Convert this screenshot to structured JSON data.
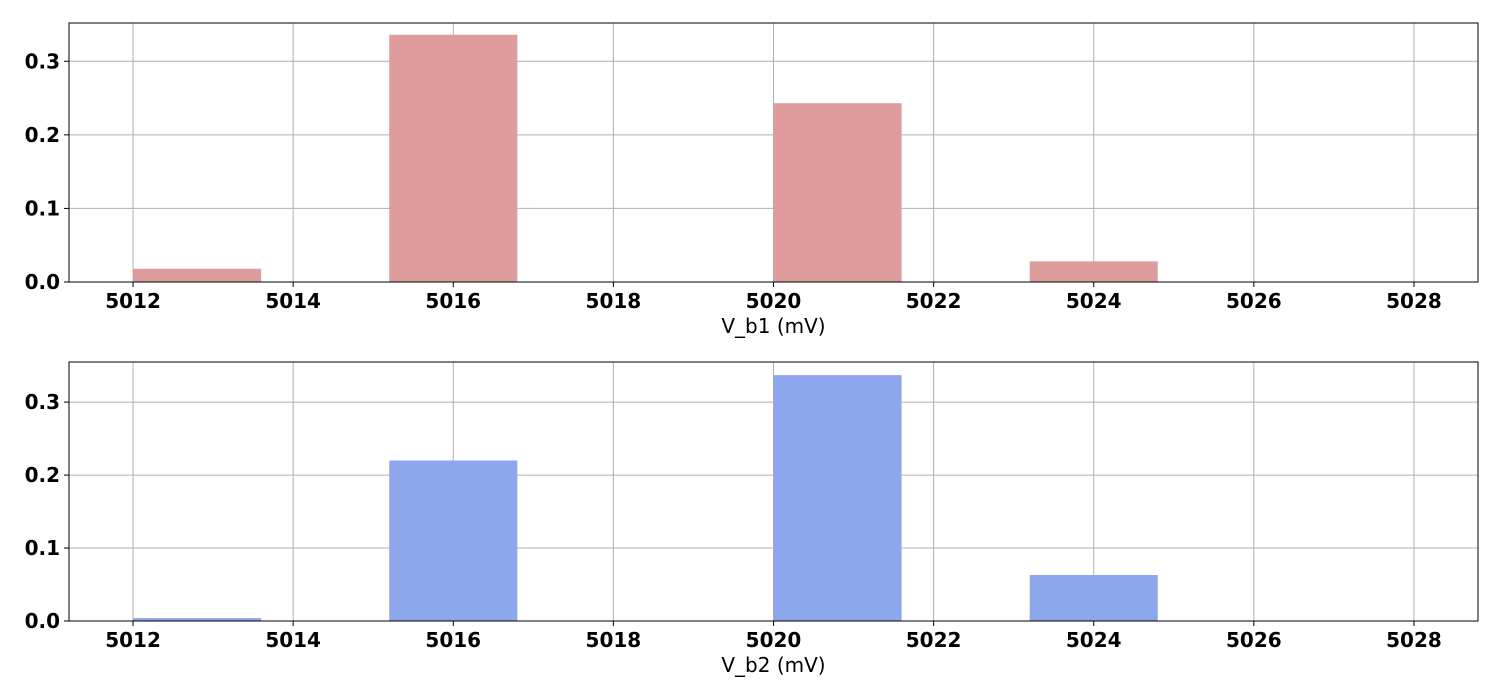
{
  "chart_data": [
    {
      "type": "bar",
      "xlabel": "V_b1 (mV)",
      "ylabel": "",
      "xlim": [
        5011.2,
        5028.8
      ],
      "ylim": [
        0,
        0.352
      ],
      "xticks": [
        5012,
        5014,
        5016,
        5018,
        5020,
        5022,
        5024,
        5026,
        5028
      ],
      "yticks": [
        0.0,
        0.1,
        0.2,
        0.3
      ],
      "ytick_labels": [
        "0.0",
        "0.1",
        "0.2",
        "0.3"
      ],
      "grid": true,
      "color": "#de9c9c",
      "bars": [
        {
          "x0": 5012.0,
          "x1": 5013.6,
          "value": 0.018
        },
        {
          "x0": 5015.2,
          "x1": 5016.8,
          "value": 0.336
        },
        {
          "x0": 5020.0,
          "x1": 5021.6,
          "value": 0.243
        },
        {
          "x0": 5023.2,
          "x1": 5024.8,
          "value": 0.028
        }
      ]
    },
    {
      "type": "bar",
      "xlabel": "V_b2 (mV)",
      "ylabel": "",
      "xlim": [
        5011.2,
        5028.8
      ],
      "ylim": [
        0,
        0.355
      ],
      "xticks": [
        5012,
        5014,
        5016,
        5018,
        5020,
        5022,
        5024,
        5026,
        5028
      ],
      "yticks": [
        0.0,
        0.1,
        0.2,
        0.3
      ],
      "ytick_labels": [
        "0.0",
        "0.1",
        "0.2",
        "0.3"
      ],
      "grid": true,
      "color": "#8ea6ec",
      "bars": [
        {
          "x0": 5012.0,
          "x1": 5013.6,
          "value": 0.004
        },
        {
          "x0": 5015.2,
          "x1": 5016.8,
          "value": 0.22
        },
        {
          "x0": 5020.0,
          "x1": 5021.6,
          "value": 0.337
        },
        {
          "x0": 5023.2,
          "x1": 5024.8,
          "value": 0.063
        }
      ]
    }
  ]
}
